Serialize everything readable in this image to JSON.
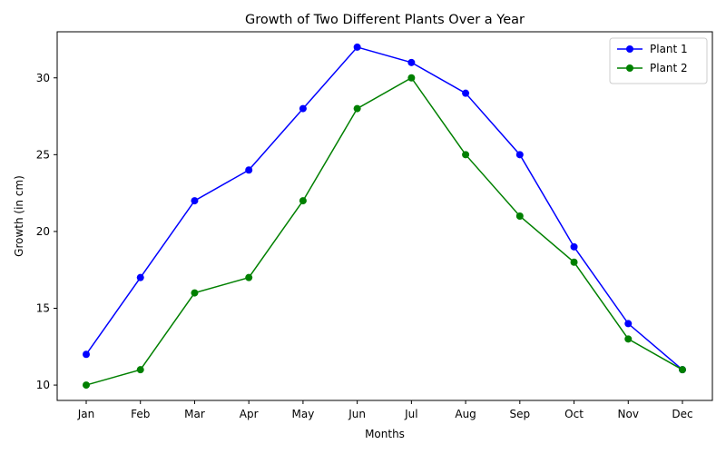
{
  "chart_data": {
    "type": "line",
    "title": "Growth of Two Different Plants Over a Year",
    "xlabel": "Months",
    "ylabel": "Growth (in cm)",
    "categories": [
      "Jan",
      "Feb",
      "Mar",
      "Apr",
      "May",
      "Jun",
      "Jul",
      "Aug",
      "Sep",
      "Oct",
      "Nov",
      "Dec"
    ],
    "ylim": [
      9,
      33
    ],
    "yticks": [
      10,
      15,
      20,
      25,
      30
    ],
    "grid": false,
    "legend_position": "top-right",
    "series": [
      {
        "name": "Plant 1",
        "color": "#0000ff",
        "marker": "circle",
        "values": [
          12,
          17,
          22,
          24,
          28,
          32,
          31,
          29,
          25,
          19,
          14,
          11
        ]
      },
      {
        "name": "Plant 2",
        "color": "#008000",
        "marker": "circle",
        "values": [
          10,
          11,
          16,
          17,
          22,
          28,
          30,
          25,
          21,
          18,
          13,
          11
        ]
      }
    ]
  }
}
